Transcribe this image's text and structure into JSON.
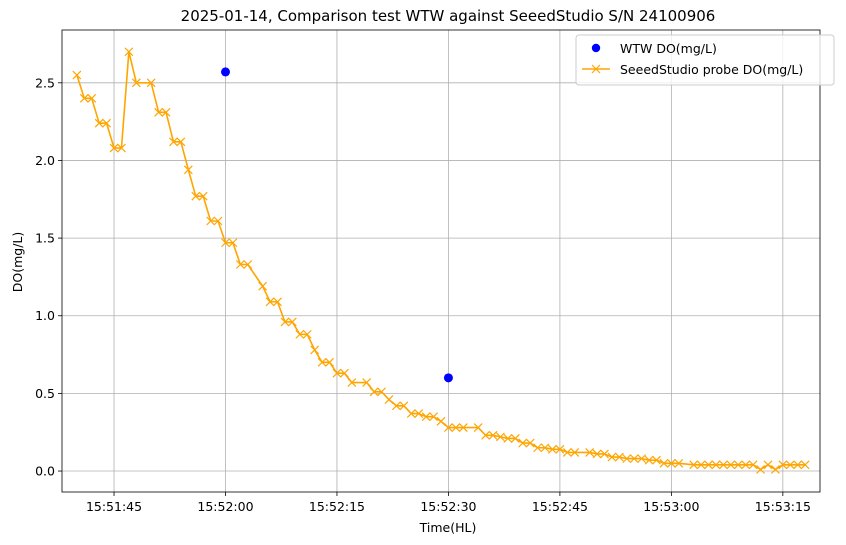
{
  "chart_data": {
    "type": "line",
    "title": "2025-01-14, Comparison test WTW against SeeedStudio S/N 24100906",
    "xlabel": "Time(HL)",
    "ylabel": "DO(mg/L)",
    "x_tick_labels": [
      "15:51:45",
      "15:52:00",
      "15:52:15",
      "15:52:30",
      "15:52:45",
      "15:53:00",
      "15:53:15"
    ],
    "y_tick_labels": [
      "0.0",
      "0.5",
      "1.0",
      "1.5",
      "2.0",
      "2.5"
    ],
    "xlim": [
      "15:51:38",
      "15:53:20"
    ],
    "ylim": [
      -0.135,
      2.84
    ],
    "grid": true,
    "legend_position": "upper right",
    "series": [
      {
        "name": "WTW DO(mg/L)",
        "kind": "scatter",
        "color": "#0000ff",
        "marker": "circle",
        "points": [
          {
            "x": "15:52:00",
            "y": 2.57
          },
          {
            "x": "15:52:30",
            "y": 0.6
          }
        ]
      },
      {
        "name": "SeeedStudio probe DO(mg/L)",
        "kind": "line",
        "color": "#ffa500",
        "marker": "x",
        "points": [
          {
            "x": "15:51:40",
            "y": 2.55
          },
          {
            "x": "15:51:41",
            "y": 2.4
          },
          {
            "x": "15:51:42",
            "y": 2.4
          },
          {
            "x": "15:51:43",
            "y": 2.24
          },
          {
            "x": "15:51:44",
            "y": 2.24
          },
          {
            "x": "15:51:45",
            "y": 2.08
          },
          {
            "x": "15:51:46",
            "y": 2.08
          },
          {
            "x": "15:51:47",
            "y": 2.7
          },
          {
            "x": "15:51:48",
            "y": 2.5
          },
          {
            "x": "15:51:50",
            "y": 2.5
          },
          {
            "x": "15:51:51",
            "y": 2.31
          },
          {
            "x": "15:51:52",
            "y": 2.31
          },
          {
            "x": "15:51:53",
            "y": 2.12
          },
          {
            "x": "15:51:54",
            "y": 2.12
          },
          {
            "x": "15:51:55",
            "y": 1.94
          },
          {
            "x": "15:51:56",
            "y": 1.77
          },
          {
            "x": "15:51:57",
            "y": 1.77
          },
          {
            "x": "15:51:58",
            "y": 1.61
          },
          {
            "x": "15:51:59",
            "y": 1.61
          },
          {
            "x": "15:52:00",
            "y": 1.47
          },
          {
            "x": "15:52:01",
            "y": 1.47
          },
          {
            "x": "15:52:02",
            "y": 1.33
          },
          {
            "x": "15:52:03",
            "y": 1.33
          },
          {
            "x": "15:52:05",
            "y": 1.19
          },
          {
            "x": "15:52:06",
            "y": 1.09
          },
          {
            "x": "15:52:07",
            "y": 1.09
          },
          {
            "x": "15:52:08",
            "y": 0.96
          },
          {
            "x": "15:52:09",
            "y": 0.96
          },
          {
            "x": "15:52:10",
            "y": 0.88
          },
          {
            "x": "15:52:11",
            "y": 0.88
          },
          {
            "x": "15:52:12",
            "y": 0.78
          },
          {
            "x": "15:52:13",
            "y": 0.7
          },
          {
            "x": "15:52:14",
            "y": 0.7
          },
          {
            "x": "15:52:15",
            "y": 0.63
          },
          {
            "x": "15:52:16",
            "y": 0.63
          },
          {
            "x": "15:52:17",
            "y": 0.57
          },
          {
            "x": "15:52:19",
            "y": 0.57
          },
          {
            "x": "15:52:20",
            "y": 0.51
          },
          {
            "x": "15:52:21",
            "y": 0.51
          },
          {
            "x": "15:52:22",
            "y": 0.46
          },
          {
            "x": "15:52:23",
            "y": 0.42
          },
          {
            "x": "15:52:24",
            "y": 0.42
          },
          {
            "x": "15:52:25",
            "y": 0.37
          },
          {
            "x": "15:52:26",
            "y": 0.37
          },
          {
            "x": "15:52:27",
            "y": 0.35
          },
          {
            "x": "15:52:28",
            "y": 0.35
          },
          {
            "x": "15:52:29",
            "y": 0.32
          },
          {
            "x": "15:52:30",
            "y": 0.28
          },
          {
            "x": "15:52:31",
            "y": 0.28
          },
          {
            "x": "15:52:32",
            "y": 0.28
          },
          {
            "x": "15:52:34",
            "y": 0.28
          },
          {
            "x": "15:52:35",
            "y": 0.23
          },
          {
            "x": "15:52:36",
            "y": 0.23
          },
          {
            "x": "15:52:37",
            "y": 0.22
          },
          {
            "x": "15:52:38",
            "y": 0.21
          },
          {
            "x": "15:52:39",
            "y": 0.21
          },
          {
            "x": "15:52:40",
            "y": 0.18
          },
          {
            "x": "15:52:41",
            "y": 0.18
          },
          {
            "x": "15:52:42",
            "y": 0.15
          },
          {
            "x": "15:52:43",
            "y": 0.15
          },
          {
            "x": "15:52:44",
            "y": 0.14
          },
          {
            "x": "15:52:45",
            "y": 0.14
          },
          {
            "x": "15:52:46",
            "y": 0.12
          },
          {
            "x": "15:52:47",
            "y": 0.12
          },
          {
            "x": "15:52:49",
            "y": 0.12
          },
          {
            "x": "15:52:50",
            "y": 0.11
          },
          {
            "x": "15:52:51",
            "y": 0.11
          },
          {
            "x": "15:52:52",
            "y": 0.09
          },
          {
            "x": "15:52:53",
            "y": 0.09
          },
          {
            "x": "15:52:54",
            "y": 0.08
          },
          {
            "x": "15:52:55",
            "y": 0.08
          },
          {
            "x": "15:52:56",
            "y": 0.08
          },
          {
            "x": "15:52:57",
            "y": 0.07
          },
          {
            "x": "15:52:58",
            "y": 0.07
          },
          {
            "x": "15:52:59",
            "y": 0.05
          },
          {
            "x": "15:53:00",
            "y": 0.05
          },
          {
            "x": "15:53:01",
            "y": 0.05
          },
          {
            "x": "15:53:03",
            "y": 0.04
          },
          {
            "x": "15:53:04",
            "y": 0.04
          },
          {
            "x": "15:53:05",
            "y": 0.04
          },
          {
            "x": "15:53:06",
            "y": 0.04
          },
          {
            "x": "15:53:07",
            "y": 0.04
          },
          {
            "x": "15:53:08",
            "y": 0.04
          },
          {
            "x": "15:53:09",
            "y": 0.04
          },
          {
            "x": "15:53:10",
            "y": 0.04
          },
          {
            "x": "15:53:11",
            "y": 0.04
          },
          {
            "x": "15:53:12",
            "y": 0.01
          },
          {
            "x": "15:53:13",
            "y": 0.04
          },
          {
            "x": "15:53:14",
            "y": 0.01
          },
          {
            "x": "15:53:15",
            "y": 0.04
          },
          {
            "x": "15:53:16",
            "y": 0.04
          },
          {
            "x": "15:53:17",
            "y": 0.04
          },
          {
            "x": "15:53:18",
            "y": 0.04
          }
        ]
      }
    ]
  }
}
